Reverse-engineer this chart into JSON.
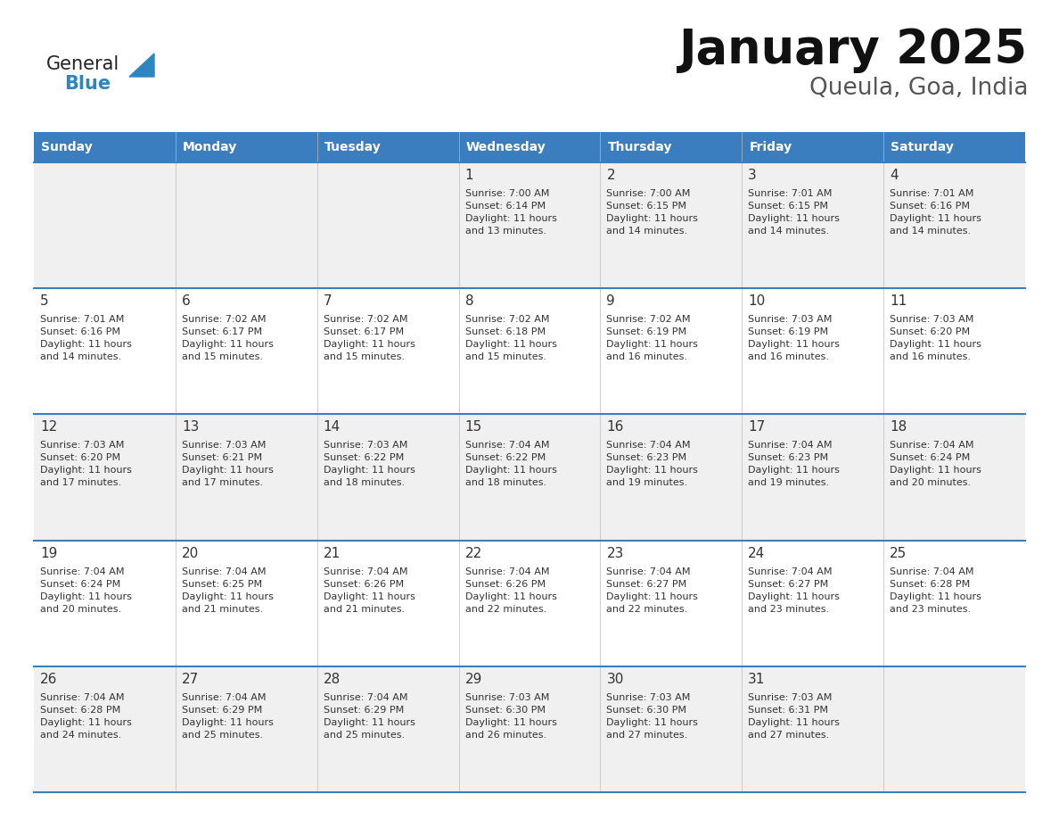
{
  "title": "January 2025",
  "subtitle": "Queula, Goa, India",
  "header_bg": "#3a7ebf",
  "header_text_color": "#ffffff",
  "row_bg_odd": "#f0f0f0",
  "row_bg_even": "#ffffff",
  "border_color": "#3a7ebf",
  "text_color": "#333333",
  "days_of_week": [
    "Sunday",
    "Monday",
    "Tuesday",
    "Wednesday",
    "Thursday",
    "Friday",
    "Saturday"
  ],
  "calendar": [
    [
      {
        "day": "",
        "sunrise": "",
        "sunset": "",
        "daylight": ""
      },
      {
        "day": "",
        "sunrise": "",
        "sunset": "",
        "daylight": ""
      },
      {
        "day": "",
        "sunrise": "",
        "sunset": "",
        "daylight": ""
      },
      {
        "day": "1",
        "sunrise": "7:00 AM",
        "sunset": "6:14 PM",
        "daylight": "11 hours\nand 13 minutes."
      },
      {
        "day": "2",
        "sunrise": "7:00 AM",
        "sunset": "6:15 PM",
        "daylight": "11 hours\nand 14 minutes."
      },
      {
        "day": "3",
        "sunrise": "7:01 AM",
        "sunset": "6:15 PM",
        "daylight": "11 hours\nand 14 minutes."
      },
      {
        "day": "4",
        "sunrise": "7:01 AM",
        "sunset": "6:16 PM",
        "daylight": "11 hours\nand 14 minutes."
      }
    ],
    [
      {
        "day": "5",
        "sunrise": "7:01 AM",
        "sunset": "6:16 PM",
        "daylight": "11 hours\nand 14 minutes."
      },
      {
        "day": "6",
        "sunrise": "7:02 AM",
        "sunset": "6:17 PM",
        "daylight": "11 hours\nand 15 minutes."
      },
      {
        "day": "7",
        "sunrise": "7:02 AM",
        "sunset": "6:17 PM",
        "daylight": "11 hours\nand 15 minutes."
      },
      {
        "day": "8",
        "sunrise": "7:02 AM",
        "sunset": "6:18 PM",
        "daylight": "11 hours\nand 15 minutes."
      },
      {
        "day": "9",
        "sunrise": "7:02 AM",
        "sunset": "6:19 PM",
        "daylight": "11 hours\nand 16 minutes."
      },
      {
        "day": "10",
        "sunrise": "7:03 AM",
        "sunset": "6:19 PM",
        "daylight": "11 hours\nand 16 minutes."
      },
      {
        "day": "11",
        "sunrise": "7:03 AM",
        "sunset": "6:20 PM",
        "daylight": "11 hours\nand 16 minutes."
      }
    ],
    [
      {
        "day": "12",
        "sunrise": "7:03 AM",
        "sunset": "6:20 PM",
        "daylight": "11 hours\nand 17 minutes."
      },
      {
        "day": "13",
        "sunrise": "7:03 AM",
        "sunset": "6:21 PM",
        "daylight": "11 hours\nand 17 minutes."
      },
      {
        "day": "14",
        "sunrise": "7:03 AM",
        "sunset": "6:22 PM",
        "daylight": "11 hours\nand 18 minutes."
      },
      {
        "day": "15",
        "sunrise": "7:04 AM",
        "sunset": "6:22 PM",
        "daylight": "11 hours\nand 18 minutes."
      },
      {
        "day": "16",
        "sunrise": "7:04 AM",
        "sunset": "6:23 PM",
        "daylight": "11 hours\nand 19 minutes."
      },
      {
        "day": "17",
        "sunrise": "7:04 AM",
        "sunset": "6:23 PM",
        "daylight": "11 hours\nand 19 minutes."
      },
      {
        "day": "18",
        "sunrise": "7:04 AM",
        "sunset": "6:24 PM",
        "daylight": "11 hours\nand 20 minutes."
      }
    ],
    [
      {
        "day": "19",
        "sunrise": "7:04 AM",
        "sunset": "6:24 PM",
        "daylight": "11 hours\nand 20 minutes."
      },
      {
        "day": "20",
        "sunrise": "7:04 AM",
        "sunset": "6:25 PM",
        "daylight": "11 hours\nand 21 minutes."
      },
      {
        "day": "21",
        "sunrise": "7:04 AM",
        "sunset": "6:26 PM",
        "daylight": "11 hours\nand 21 minutes."
      },
      {
        "day": "22",
        "sunrise": "7:04 AM",
        "sunset": "6:26 PM",
        "daylight": "11 hours\nand 22 minutes."
      },
      {
        "day": "23",
        "sunrise": "7:04 AM",
        "sunset": "6:27 PM",
        "daylight": "11 hours\nand 22 minutes."
      },
      {
        "day": "24",
        "sunrise": "7:04 AM",
        "sunset": "6:27 PM",
        "daylight": "11 hours\nand 23 minutes."
      },
      {
        "day": "25",
        "sunrise": "7:04 AM",
        "sunset": "6:28 PM",
        "daylight": "11 hours\nand 23 minutes."
      }
    ],
    [
      {
        "day": "26",
        "sunrise": "7:04 AM",
        "sunset": "6:28 PM",
        "daylight": "11 hours\nand 24 minutes."
      },
      {
        "day": "27",
        "sunrise": "7:04 AM",
        "sunset": "6:29 PM",
        "daylight": "11 hours\nand 25 minutes."
      },
      {
        "day": "28",
        "sunrise": "7:04 AM",
        "sunset": "6:29 PM",
        "daylight": "11 hours\nand 25 minutes."
      },
      {
        "day": "29",
        "sunrise": "7:03 AM",
        "sunset": "6:30 PM",
        "daylight": "11 hours\nand 26 minutes."
      },
      {
        "day": "30",
        "sunrise": "7:03 AM",
        "sunset": "6:30 PM",
        "daylight": "11 hours\nand 27 minutes."
      },
      {
        "day": "31",
        "sunrise": "7:03 AM",
        "sunset": "6:31 PM",
        "daylight": "11 hours\nand 27 minutes."
      },
      {
        "day": "",
        "sunrise": "",
        "sunset": "",
        "daylight": ""
      }
    ]
  ],
  "logo_color_general": "#222222",
  "logo_color_blue": "#2e86c1",
  "logo_triangle_color": "#2e86c1",
  "fig_width": 11.88,
  "fig_height": 9.18,
  "dpi": 100
}
